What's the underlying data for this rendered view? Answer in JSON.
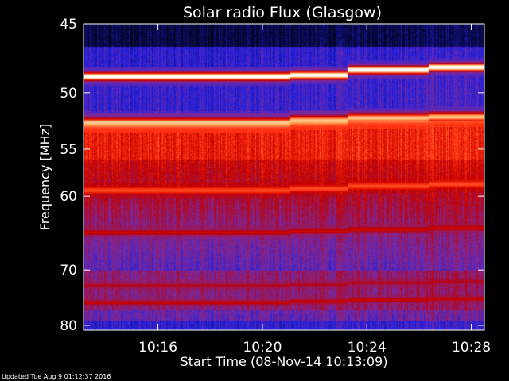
{
  "chart_data": {
    "type": "heatmap",
    "title": "Solar radio Flux (Glasgow)",
    "xlabel": "Start Time (08-Nov-14 10:13:09)",
    "ylabel": "Frequency [MHz]",
    "x_range": [
      "10:13:09",
      "10:28:30"
    ],
    "y_range_mhz": [
      45,
      81
    ],
    "y_scale": "reciprocal",
    "x_ticks": [
      "10:16",
      "10:20",
      "10:24",
      "10:28"
    ],
    "y_ticks": [
      45,
      50,
      55,
      60,
      70,
      80
    ],
    "colormap": [
      "#000000",
      "#0a0a50",
      "#2020e0",
      "#7a2aa0",
      "#c00000",
      "#ff3010",
      "#ffb060",
      "#ffffff"
    ],
    "segment_starts": [
      "10:13:09",
      "10:21:03",
      "10:23:15",
      "10:26:22"
    ],
    "emission_lines": [
      {
        "mhz": 48.7,
        "intensity": 1.0,
        "drift_mhz": [
          0,
          -0.1,
          -0.5,
          -0.7
        ]
      },
      {
        "mhz": 52.5,
        "intensity": 0.85,
        "drift_mhz": [
          0,
          -0.2,
          -0.4,
          -0.5
        ]
      },
      {
        "mhz": 59.3,
        "intensity": 0.75,
        "drift_mhz": [
          0,
          -0.2,
          -0.5,
          -0.7
        ]
      },
      {
        "mhz": 64.5,
        "intensity": 0.6,
        "drift_mhz": [
          0,
          -0.2,
          -0.4,
          -0.6
        ]
      },
      {
        "mhz": 72.5,
        "intensity": 0.55,
        "drift_mhz": [
          0,
          -0.2,
          -0.5,
          -0.7
        ]
      },
      {
        "mhz": 75.5,
        "intensity": 0.6,
        "drift_mhz": [
          0,
          -0.2,
          -0.5,
          -0.7
        ]
      }
    ]
  },
  "footer": {
    "updated": "Updated Tue Aug  9 01:12:37 2016"
  }
}
